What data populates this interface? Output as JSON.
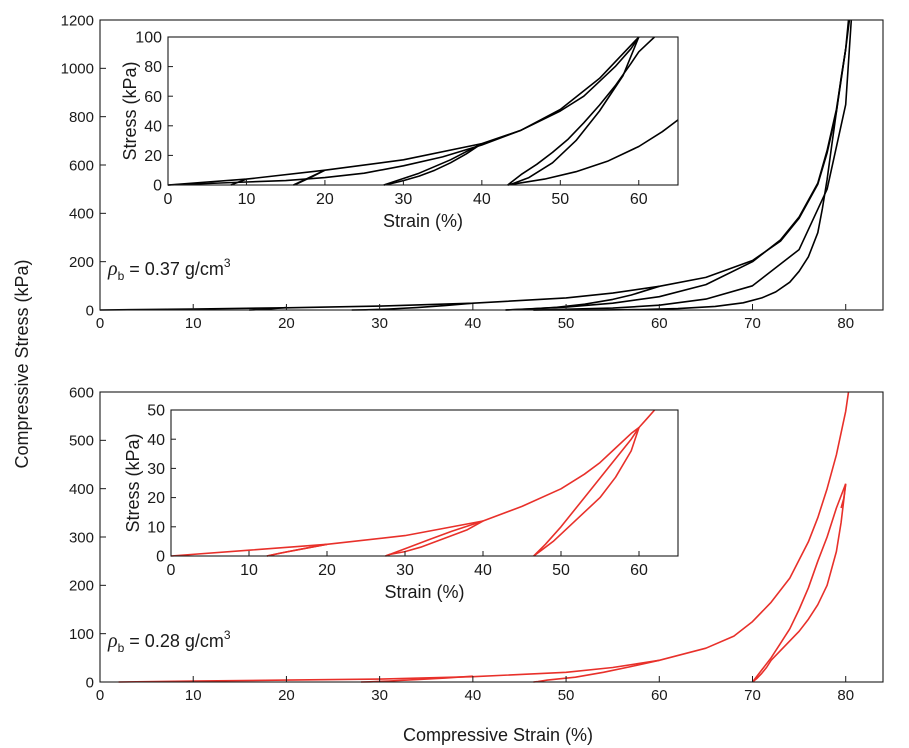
{
  "figure": {
    "shared_ylabel": "Compressive Stress (kPa)",
    "shared_xlabel": "Compressive Strain (%)"
  },
  "chart_data": [
    {
      "id": "top_main",
      "type": "line",
      "color": "#000000",
      "xlabel": "",
      "ylabel": "Compressive Stress (kPa)",
      "xlim": [
        0,
        84
      ],
      "ylim": [
        0,
        1200
      ],
      "xticks": [
        0,
        10,
        20,
        30,
        40,
        50,
        60,
        70,
        80
      ],
      "yticks": [
        0,
        200,
        400,
        600,
        800,
        1000,
        1200
      ],
      "annotation": {
        "symbol": "ρ",
        "subscript": "b",
        "text": " = 0.37 g/cm",
        "superscript": "3"
      },
      "series": [
        {
          "x": [
            0,
            10,
            20,
            30,
            40,
            50,
            55,
            60,
            65,
            70,
            73,
            75,
            77,
            78,
            79,
            80,
            80.4
          ],
          "y": [
            0,
            4,
            9,
            16,
            28,
            50,
            70,
            98,
            135,
            205,
            285,
            380,
            520,
            650,
            820,
            1080,
            1200
          ]
        },
        {
          "x": [
            60,
            57,
            55,
            52,
            49,
            46,
            44,
            43.5
          ],
          "y": [
            98,
            62,
            44,
            24,
            11,
            4,
            1,
            0
          ]
        },
        {
          "x": [
            43.5,
            50,
            55,
            60,
            65,
            70,
            73,
            75,
            77,
            78,
            79,
            80,
            80.3
          ],
          "y": [
            0,
            12,
            28,
            55,
            105,
            200,
            290,
            385,
            525,
            660,
            830,
            1080,
            1200
          ]
        },
        {
          "x": [
            80,
            79.5,
            79,
            78.5,
            78,
            77.5,
            77,
            76,
            75,
            74,
            72.5,
            71,
            69,
            66,
            62,
            58,
            54,
            50,
            46.5
          ],
          "y": [
            1080,
            960,
            820,
            680,
            540,
            420,
            320,
            220,
            160,
            115,
            75,
            50,
            30,
            15,
            6,
            2,
            0.5,
            0,
            0
          ]
        },
        {
          "x": [
            46.5,
            55,
            60,
            65,
            70,
            75,
            78,
            80,
            80.6
          ],
          "y": [
            0,
            8,
            20,
            45,
            100,
            250,
            500,
            850,
            1200
          ]
        },
        {
          "x": [
            40,
            37,
            34,
            31,
            28.5,
            27
          ],
          "y": [
            28,
            18,
            10,
            4,
            1,
            0
          ]
        },
        {
          "x": [
            20,
            18,
            16.5,
            16
          ],
          "y": [
            10,
            4,
            1,
            0
          ]
        }
      ]
    },
    {
      "id": "top_inset",
      "type": "line",
      "color": "#000000",
      "xlabel": "Strain (%)",
      "ylabel": "Stress (kPa)",
      "xlim": [
        0,
        65
      ],
      "ylim": [
        0,
        100
      ],
      "xticks": [
        0,
        10,
        20,
        30,
        40,
        50,
        60
      ],
      "yticks": [
        0,
        20,
        40,
        60,
        80,
        100
      ],
      "series": [
        {
          "x": [
            0,
            10,
            20,
            30,
            40,
            45,
            50,
            53,
            55,
            57,
            59,
            60
          ],
          "y": [
            0,
            4,
            10,
            17,
            28,
            37,
            50,
            60,
            70,
            80,
            92,
            100
          ]
        },
        {
          "x": [
            60,
            58,
            55,
            52,
            49,
            46,
            44,
            43.3
          ],
          "y": [
            100,
            74,
            50,
            30,
            15,
            5,
            1,
            0
          ]
        },
        {
          "x": [
            43.3,
            45,
            47,
            49,
            51,
            53,
            55,
            57,
            59,
            60,
            61,
            62
          ],
          "y": [
            0,
            7,
            14,
            22,
            31,
            42,
            54,
            67,
            82,
            90,
            95,
            100
          ]
        },
        {
          "x": [
            60,
            55,
            50,
            45,
            40,
            35,
            30,
            25,
            20,
            15,
            10,
            5,
            0
          ],
          "y": [
            100,
            72,
            51,
            37,
            27,
            19,
            13,
            8,
            5,
            3,
            2,
            1,
            0
          ]
        },
        {
          "x": [
            40,
            38,
            36,
            34,
            32,
            30,
            28.5,
            27.5
          ],
          "y": [
            28,
            21,
            15,
            10,
            6,
            3,
            1,
            0
          ]
        },
        {
          "x": [
            27.5,
            32,
            36,
            40
          ],
          "y": [
            0,
            8,
            17,
            28
          ]
        },
        {
          "x": [
            20,
            18.5,
            17.3,
            16.5,
            16
          ],
          "y": [
            10,
            6,
            3,
            1,
            0
          ]
        },
        {
          "x": [
            16,
            18,
            20
          ],
          "y": [
            0,
            5,
            10
          ]
        },
        {
          "x": [
            10,
            9,
            8.5,
            8
          ],
          "y": [
            4,
            2,
            1,
            0
          ]
        },
        {
          "x": [
            43.3,
            48,
            52,
            56,
            60,
            63,
            65
          ],
          "y": [
            0,
            4,
            9,
            16,
            26,
            36,
            44
          ]
        }
      ]
    },
    {
      "id": "bottom_main",
      "type": "line",
      "color": "#e8302a",
      "xlabel": "Compressive Strain (%)",
      "ylabel": "Compressive Stress (kPa)",
      "xlim": [
        0,
        84
      ],
      "ylim": [
        0,
        600
      ],
      "xticks": [
        0,
        10,
        20,
        30,
        40,
        50,
        60,
        70,
        80
      ],
      "yticks": [
        0,
        100,
        200,
        300,
        400,
        500,
        600
      ],
      "annotation": {
        "symbol": "ρ",
        "subscript": "b",
        "text": " = 0.28 g/cm",
        "superscript": "3"
      },
      "series": [
        {
          "x": [
            2,
            10,
            20,
            30,
            40,
            50,
            55,
            60,
            65,
            68,
            70,
            72,
            74,
            76,
            77,
            78,
            79,
            80,
            80.3
          ],
          "y": [
            0,
            2,
            4,
            6,
            11,
            20,
            30,
            45,
            70,
            95,
            125,
            165,
            215,
            290,
            340,
            400,
            470,
            560,
            600
          ]
        },
        {
          "x": [
            60,
            57,
            54,
            51,
            48,
            47,
            46.5
          ],
          "y": [
            45,
            32,
            20,
            10,
            4,
            1,
            0
          ]
        },
        {
          "x": [
            40,
            37,
            34,
            31,
            29,
            28
          ],
          "y": [
            12,
            8,
            5,
            2,
            0.5,
            0
          ]
        },
        {
          "x": [
            80,
            79.5,
            79,
            78,
            77,
            76,
            75,
            74,
            73,
            72,
            71.5,
            71,
            70.5,
            70
          ],
          "y": [
            410,
            330,
            270,
            200,
            160,
            130,
            105,
            85,
            65,
            45,
            30,
            18,
            8,
            0
          ]
        },
        {
          "x": [
            70,
            71,
            72,
            73,
            74,
            75,
            76,
            77,
            78,
            79,
            80
          ],
          "y": [
            0,
            25,
            50,
            80,
            110,
            150,
            195,
            250,
            300,
            360,
            410
          ]
        },
        {
          "x": [
            80,
            79.8,
            79.5
          ],
          "y": [
            410,
            380,
            360
          ]
        }
      ]
    },
    {
      "id": "bottom_inset",
      "type": "line",
      "color": "#e8302a",
      "xlabel": "Strain (%)",
      "ylabel": "Stress (kPa)",
      "xlim": [
        0,
        65
      ],
      "ylim": [
        0,
        50
      ],
      "xticks": [
        0,
        10,
        20,
        30,
        40,
        50,
        60
      ],
      "yticks": [
        0,
        10,
        20,
        30,
        40,
        50
      ],
      "series": [
        {
          "x": [
            0,
            10,
            20,
            30,
            40,
            45,
            50,
            53,
            55,
            57,
            59,
            60,
            61,
            62
          ],
          "y": [
            0,
            2,
            4,
            7,
            12,
            17,
            23,
            28,
            32,
            37,
            42,
            44,
            47,
            50
          ]
        },
        {
          "x": [
            60,
            59,
            57,
            55,
            53,
            51,
            49,
            47.5,
            46.5
          ],
          "y": [
            44,
            36,
            27,
            20,
            15,
            10,
            5,
            2,
            0
          ]
        },
        {
          "x": [
            46.5,
            48,
            50,
            53,
            56,
            59,
            60
          ],
          "y": [
            0,
            4,
            10,
            20,
            30,
            40,
            44
          ]
        },
        {
          "x": [
            40,
            38,
            35,
            32,
            30,
            28,
            27.5
          ],
          "y": [
            12,
            9,
            6,
            3,
            1.5,
            0.5,
            0
          ]
        },
        {
          "x": [
            27.5,
            30,
            33,
            36,
            40
          ],
          "y": [
            0,
            2.5,
            5.5,
            8.5,
            12
          ]
        },
        {
          "x": [
            20,
            18,
            16,
            14,
            12.3
          ],
          "y": [
            4,
            3,
            2,
            1,
            0
          ]
        },
        {
          "x": [
            12.3,
            15,
            18,
            20
          ],
          "y": [
            0,
            1.5,
            3,
            4
          ]
        }
      ]
    }
  ]
}
